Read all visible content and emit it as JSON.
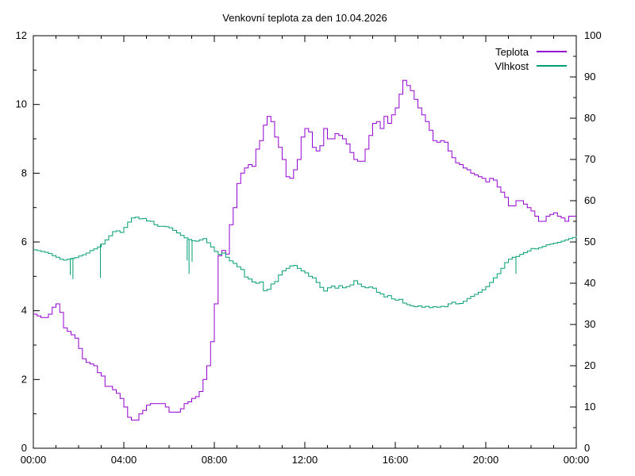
{
  "title": "Venkovní teplota za den 10.04.2026",
  "legend": {
    "position": "top-right",
    "items": [
      {
        "label": "Teplota",
        "color": "#9400d3"
      },
      {
        "label": "Vlhkost",
        "color": "#009e73"
      }
    ]
  },
  "chart_data": {
    "type": "line",
    "title": "Venkovní teplota za den 10.04.2026",
    "grid": false,
    "legend_position": "top-right",
    "style": "steps",
    "x_axis": {
      "unit": "time",
      "range_hours": [
        0,
        24
      ],
      "major_tick_hours": 4,
      "minor_tick_hours": 1,
      "tick_labels": [
        "00:00",
        "04:00",
        "08:00",
        "12:00",
        "16:00",
        "20:00",
        "00:00"
      ]
    },
    "y_axis_left": {
      "series": "Teplota",
      "range": [
        0,
        12
      ],
      "major_ticks": [
        0,
        2,
        4,
        6,
        8,
        10,
        12
      ],
      "minor_tick_step": 1
    },
    "y_axis_right": {
      "series": "Vlhkost",
      "range": [
        0,
        100
      ],
      "major_ticks": [
        0,
        10,
        20,
        30,
        40,
        50,
        60,
        70,
        80,
        90,
        100
      ],
      "minor_tick_step": 5
    },
    "sample_interval_minutes": 10,
    "series": [
      {
        "name": "Teplota",
        "axis": "left",
        "color": "#9400d3",
        "unit": "°C",
        "values": [
          3.9,
          3.85,
          3.8,
          3.8,
          3.9,
          4.1,
          4.2,
          3.95,
          3.5,
          3.4,
          3.3,
          3.2,
          2.9,
          2.6,
          2.5,
          2.45,
          2.4,
          2.2,
          2.1,
          1.8,
          1.8,
          1.7,
          1.6,
          1.45,
          1.2,
          0.9,
          0.82,
          0.82,
          1.0,
          1.1,
          1.25,
          1.3,
          1.3,
          1.3,
          1.3,
          1.2,
          1.05,
          1.05,
          1.05,
          1.15,
          1.3,
          1.35,
          1.45,
          1.5,
          1.65,
          2.0,
          2.4,
          3.1,
          4.2,
          5.6,
          5.75,
          5.65,
          6.5,
          7.0,
          7.7,
          8.0,
          8.15,
          8.25,
          8.2,
          8.7,
          8.95,
          9.4,
          9.65,
          9.5,
          9.05,
          8.75,
          8.4,
          7.9,
          7.85,
          8.1,
          8.4,
          9.05,
          9.3,
          9.2,
          8.75,
          8.65,
          8.8,
          9.3,
          9.0,
          9.0,
          9.15,
          9.1,
          9.0,
          8.85,
          8.6,
          8.4,
          8.35,
          8.35,
          8.7,
          9.1,
          9.45,
          9.5,
          9.3,
          9.65,
          9.45,
          9.7,
          9.9,
          10.3,
          10.7,
          10.55,
          10.4,
          10.15,
          9.9,
          9.7,
          9.5,
          9.25,
          8.95,
          8.9,
          8.95,
          8.9,
          8.65,
          8.45,
          8.3,
          8.25,
          8.15,
          8.1,
          8.0,
          7.95,
          7.9,
          7.85,
          7.75,
          7.85,
          7.8,
          7.6,
          7.45,
          7.3,
          7.05,
          7.05,
          7.2,
          7.2,
          7.1,
          7.0,
          6.9,
          6.75,
          6.6,
          6.6,
          6.75,
          6.8,
          6.85,
          6.75,
          6.7,
          6.6,
          6.75,
          6.75,
          6.75
        ]
      },
      {
        "name": "Vlhkost",
        "axis": "right",
        "color": "#009e73",
        "unit": "%",
        "values": [
          48.1,
          47.9,
          47.7,
          47.5,
          47.2,
          46.7,
          46.3,
          45.8,
          45.6,
          45.8,
          46.0,
          46.2,
          46.6,
          46.9,
          47.3,
          47.9,
          48.3,
          48.8,
          49.5,
          50.5,
          51.5,
          52.5,
          52.7,
          52.3,
          53.5,
          54.8,
          55.8,
          56.0,
          55.6,
          55.7,
          55.1,
          55.0,
          54.2,
          53.8,
          53.8,
          53.7,
          53.4,
          52.8,
          52.2,
          51.6,
          51.0,
          50.6,
          50.3,
          50.2,
          50.5,
          50.8,
          49.8,
          48.8,
          47.7,
          47.0,
          47.3,
          46.3,
          45.4,
          44.8,
          44.0,
          43.3,
          41.5,
          41.0,
          40.3,
          40.0,
          40.3,
          38.2,
          38.5,
          39.8,
          40.4,
          42.0,
          43.0,
          43.6,
          44.2,
          44.3,
          43.6,
          43.0,
          42.5,
          41.7,
          41.3,
          40.2,
          39.0,
          38.1,
          38.9,
          39.3,
          38.8,
          39.4,
          38.9,
          39.2,
          39.6,
          40.6,
          39.8,
          39.2,
          38.9,
          39.1,
          38.8,
          37.8,
          37.4,
          36.7,
          37.0,
          36.2,
          35.9,
          36.1,
          35.2,
          34.8,
          34.5,
          34.3,
          34.5,
          34.2,
          34.4,
          34.1,
          34.3,
          34.2,
          34.4,
          34.3,
          35.0,
          35.4,
          35.0,
          35.1,
          35.6,
          36.3,
          36.8,
          37.3,
          37.8,
          38.4,
          39.2,
          40.2,
          41.3,
          42.3,
          43.6,
          45.0,
          45.8,
          46.3,
          46.5,
          47.0,
          47.4,
          47.8,
          48.4,
          48.3,
          48.6,
          48.9,
          49.3,
          49.5,
          49.7,
          49.9,
          50.2,
          50.5,
          50.8,
          51.1,
          51.4
        ],
        "spikes": [
          {
            "minute": 98,
            "down_to": 42.0
          },
          {
            "minute": 105,
            "down_to": 41.0
          },
          {
            "minute": 178,
            "down_to": 41.3
          },
          {
            "minute": 408,
            "down_to": 45.5
          },
          {
            "minute": 413,
            "down_to": 42.3
          },
          {
            "minute": 421,
            "down_to": 45.2
          },
          {
            "minute": 1280,
            "down_to": 42.3
          }
        ]
      }
    ]
  }
}
